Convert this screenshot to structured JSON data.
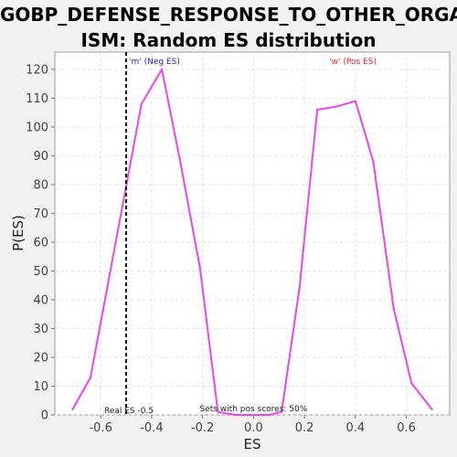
{
  "chart_data": {
    "type": "line",
    "title_lines": [
      "GOBP_DEFENSE_RESPONSE_TO_OTHER_ORGAN",
      "ISM: Random ES distribution"
    ],
    "xlabel": "ES",
    "ylabel": "P(ES)",
    "xlim": [
      -0.78,
      0.77
    ],
    "ylim": [
      0,
      126
    ],
    "x_ticks": [
      -0.6,
      -0.4,
      -0.2,
      0.0,
      0.2,
      0.4,
      0.6
    ],
    "x_tick_labels": [
      "-0.6",
      "-0.4",
      "-0.2",
      "0.0",
      "0.2",
      "0.4",
      "0.6"
    ],
    "y_ticks": [
      0,
      10,
      20,
      30,
      40,
      50,
      60,
      70,
      80,
      90,
      100,
      110,
      120
    ],
    "y_tick_labels": [
      "0",
      "10",
      "20",
      "30",
      "40",
      "50",
      "60",
      "70",
      "80",
      "90",
      "100",
      "110",
      "120"
    ],
    "grid": true,
    "series": [
      {
        "color": "#ee44ee",
        "points": [
          [
            -0.71,
            2
          ],
          [
            -0.64,
            13
          ],
          [
            -0.44,
            108
          ],
          [
            -0.36,
            120
          ],
          [
            -0.29,
            89
          ],
          [
            -0.21,
            51
          ],
          [
            -0.14,
            1
          ],
          [
            -0.07,
            0
          ],
          [
            0.0,
            0
          ],
          [
            0.06,
            0
          ],
          [
            0.11,
            1
          ],
          [
            0.18,
            44
          ],
          [
            0.25,
            106
          ],
          [
            0.32,
            107
          ],
          [
            0.4,
            109
          ],
          [
            0.47,
            88
          ],
          [
            0.55,
            37
          ],
          [
            0.62,
            11
          ],
          [
            0.7,
            2
          ]
        ]
      }
    ],
    "real_es": -0.5,
    "real_es_label": "Real ES -0.5",
    "pos_scores_label": "Sets with pos scores: 50%",
    "neg_annotation": "'m' (Neg ES)",
    "pos_annotation": "'w' (Pos ES)",
    "colors": {
      "neg": "#2222cc",
      "pos": "#ee2222",
      "line": "#ee44ee",
      "real_es_line": "#000000"
    }
  }
}
